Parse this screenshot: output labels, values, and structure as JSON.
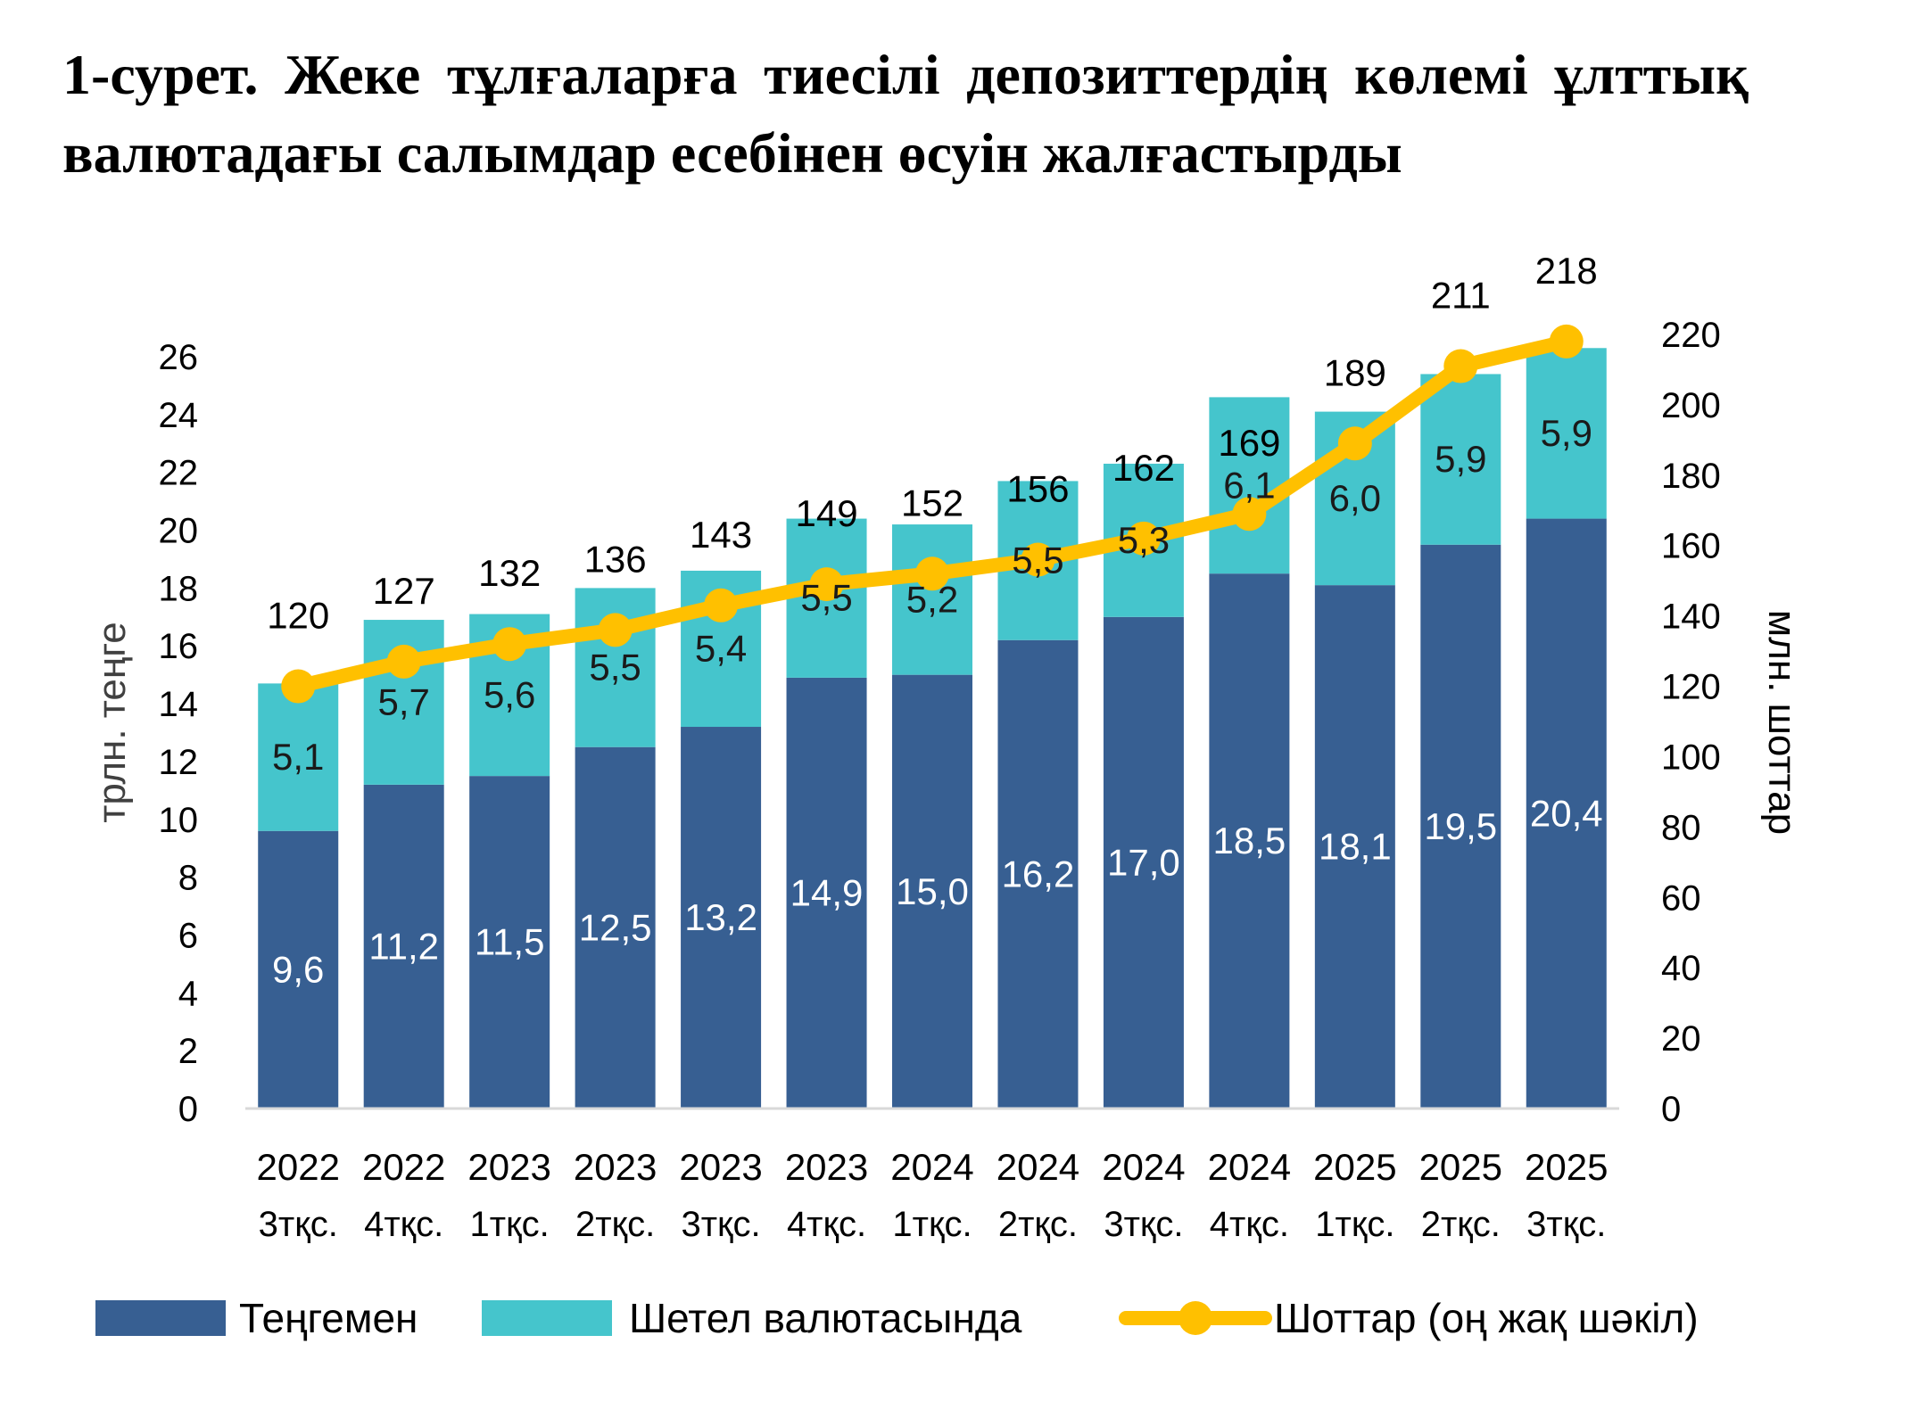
{
  "title": "1-сурет. Жеке тұлғаларға тиесілі депозиттердің көлемі ұлттық валютадағы салымдар есебінен өсуін жалғастырды",
  "colors": {
    "tenge": "#375f92",
    "foreign": "#45c5cc",
    "accounts": "#ffc000"
  },
  "chart_data": {
    "type": "bar",
    "stacked": true,
    "categories": [
      [
        "2022",
        "3тқс."
      ],
      [
        "2022",
        "4тқс."
      ],
      [
        "2023",
        "1тқс."
      ],
      [
        "2023",
        "2тқс."
      ],
      [
        "2023",
        "3тқс."
      ],
      [
        "2023",
        "4тқс."
      ],
      [
        "2024",
        "1тқс."
      ],
      [
        "2024",
        "2тқс."
      ],
      [
        "2024",
        "3тқс."
      ],
      [
        "2024",
        "4тқс."
      ],
      [
        "2025",
        "1тқс."
      ],
      [
        "2025",
        "2тқс."
      ],
      [
        "2025",
        "3тқс."
      ]
    ],
    "series": [
      {
        "name": "Теңгемен",
        "type": "bar",
        "axis": "left",
        "values": [
          9.6,
          11.2,
          11.5,
          12.5,
          13.2,
          14.9,
          15.0,
          16.2,
          17.0,
          18.5,
          18.1,
          19.5,
          20.4
        ],
        "labels": [
          "9,6",
          "11,2",
          "11,5",
          "12,5",
          "13,2",
          "14,9",
          "15,0",
          "16,2",
          "17,0",
          "18,5",
          "18,1",
          "19,5",
          "20,4"
        ]
      },
      {
        "name": "Шетел валютасында",
        "type": "bar",
        "axis": "left",
        "values": [
          5.1,
          5.7,
          5.6,
          5.5,
          5.4,
          5.5,
          5.2,
          5.5,
          5.3,
          6.1,
          6.0,
          5.9,
          5.9
        ],
        "labels": [
          "5,1",
          "5,7",
          "5,6",
          "5,5",
          "5,4",
          "5,5",
          "5,2",
          "5,5",
          "5,3",
          "6,1",
          "6,0",
          "5,9",
          "5,9"
        ]
      },
      {
        "name": "Шоттар (оң жақ шәкіл)",
        "type": "line",
        "axis": "right",
        "values": [
          120,
          127,
          132,
          136,
          143,
          149,
          152,
          156,
          162,
          169,
          189,
          211,
          218
        ],
        "labels": [
          "120",
          "127",
          "132",
          "136",
          "143",
          "149",
          "152",
          "156",
          "162",
          "169",
          "189",
          "211",
          "218"
        ]
      }
    ],
    "ylabel": "трлн. теңге",
    "y2label": "млн. шоттар",
    "ylim": [
      0,
      26
    ],
    "y2lim": [
      0,
      220
    ],
    "yticks": [
      "0",
      "2",
      "4",
      "6",
      "8",
      "10",
      "12",
      "14",
      "16",
      "18",
      "20",
      "22",
      "24",
      "26"
    ],
    "y2ticks": [
      "0",
      "20",
      "40",
      "60",
      "80",
      "100",
      "120",
      "140",
      "160",
      "180",
      "200",
      "220"
    ],
    "grid": false,
    "legend_position": "bottom"
  }
}
